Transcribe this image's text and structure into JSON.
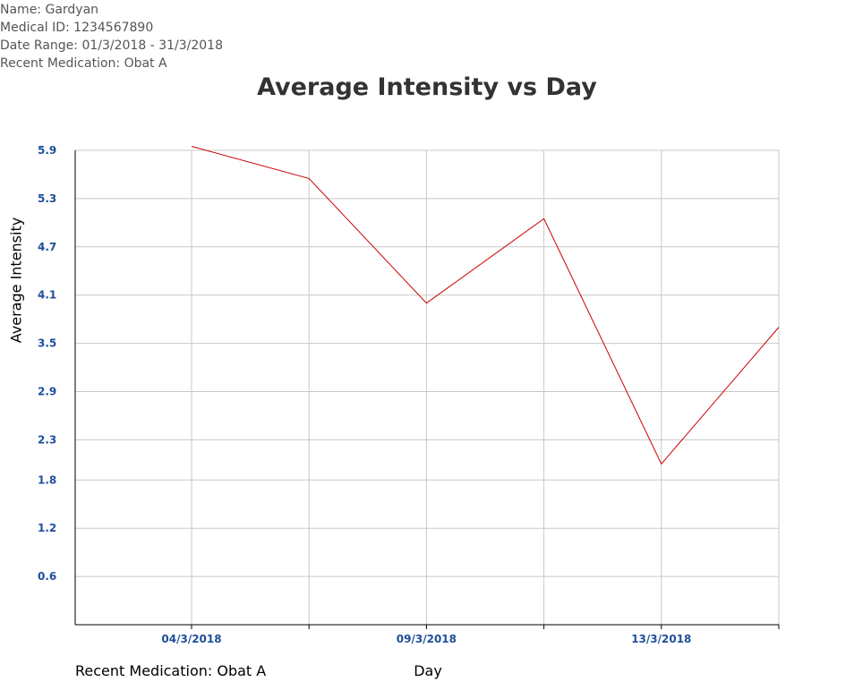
{
  "info": {
    "name": "Name: Gardyan",
    "medical_id": "Medical ID: 1234567890",
    "date_range": "Date Range: 01/3/2018 - 31/3/2018",
    "recent_medication": "Recent Medication: Obat A"
  },
  "footer_medication": "Recent Medication: Obat A",
  "colors": {
    "line": "#cc0000",
    "tick_text": "#1f4e9a",
    "grid": "#c8c8c8"
  },
  "chart_data": {
    "type": "line",
    "title": "Average Intensity vs Day",
    "xlabel": "Day",
    "ylabel": "Average Intensity",
    "ylim": [
      0,
      5.9
    ],
    "y_ticks": [
      "0.6",
      "1.2",
      "1.8",
      "2.3",
      "2.9",
      "3.5",
      "4.1",
      "4.7",
      "5.3",
      "5.9"
    ],
    "x_tick_labels": [
      "04/3/2018",
      "09/3/2018",
      "13/3/2018"
    ],
    "grid": true,
    "series": [
      {
        "values": [
          5.95,
          5.55,
          4.0,
          5.05,
          2.0,
          3.7
        ]
      }
    ]
  }
}
